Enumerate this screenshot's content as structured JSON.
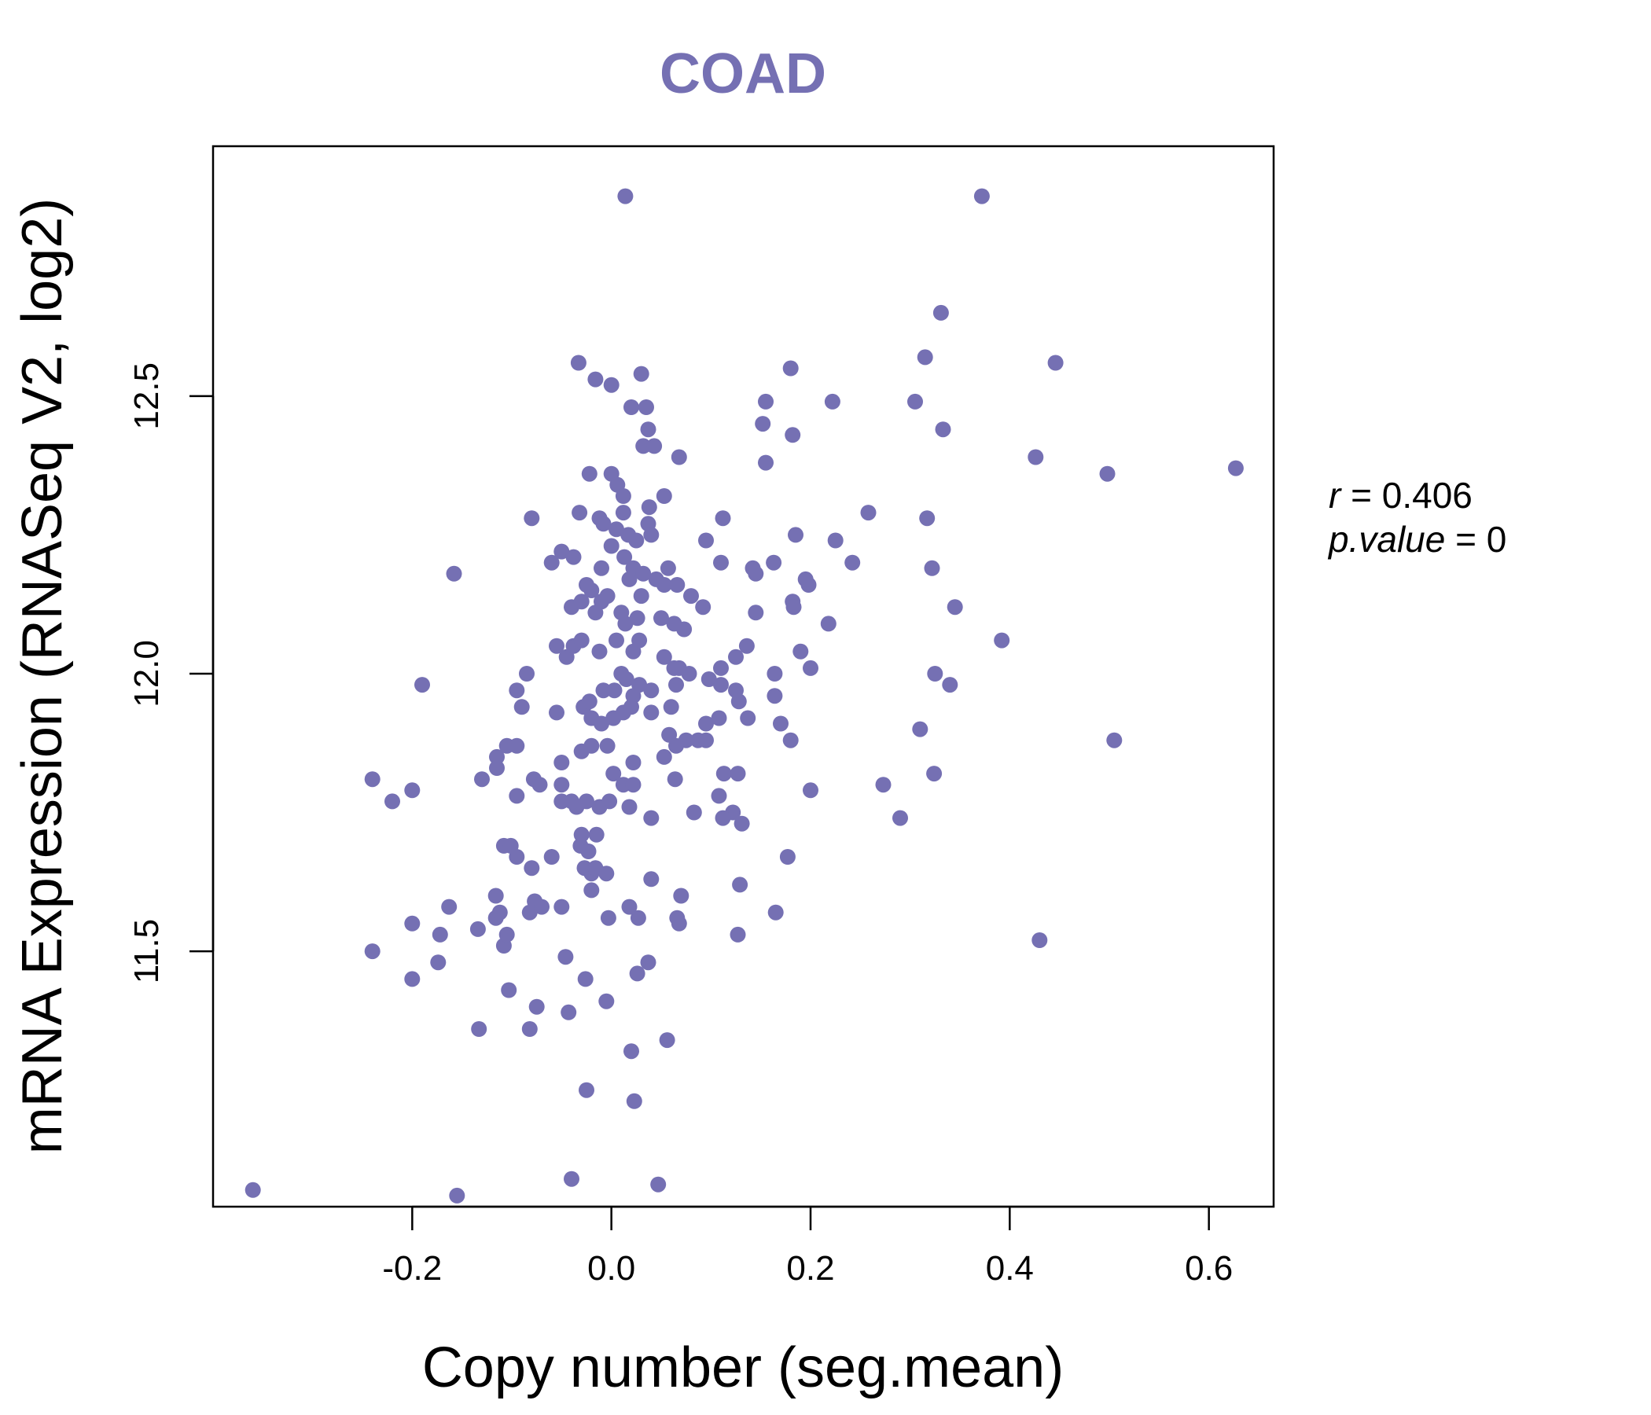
{
  "chart_data": {
    "type": "scatter",
    "title": "COAD",
    "xlabel": "Copy number (seg.mean)",
    "ylabel": "mRNA Expression (RNASeq V2, log2)",
    "xlim": [
      -0.4,
      0.665
    ],
    "ylim": [
      11.04,
      12.95
    ],
    "xticks": [
      -0.2,
      0.0,
      0.2,
      0.4,
      0.6
    ],
    "xtick_labels": [
      "-0.2",
      "0.0",
      "0.2",
      "0.4",
      "0.6"
    ],
    "yticks": [
      11.5,
      12.0,
      12.5
    ],
    "ytick_labels": [
      "11.5",
      "12.0",
      "12.5"
    ],
    "annotation": {
      "r_symbol": "r",
      "r_value": "0.406",
      "p_symbol": "p.value",
      "p_value": "0"
    },
    "colors": {
      "points": "#7570b3",
      "title": "#7570b3",
      "axis": "#000000"
    },
    "points": [
      [
        -0.36,
        11.07
      ],
      [
        -0.155,
        11.06
      ],
      [
        -0.04,
        11.09
      ],
      [
        0.047,
        11.08
      ],
      [
        -0.025,
        11.25
      ],
      [
        0.023,
        11.23
      ],
      [
        0.02,
        11.32
      ],
      [
        0.056,
        11.34
      ],
      [
        -0.133,
        11.36
      ],
      [
        -0.082,
        11.36
      ],
      [
        -0.075,
        11.4
      ],
      [
        -0.043,
        11.39
      ],
      [
        -0.005,
        11.41
      ],
      [
        -0.103,
        11.43
      ],
      [
        -0.2,
        11.45
      ],
      [
        -0.026,
        11.45
      ],
      [
        -0.046,
        11.49
      ],
      [
        0.026,
        11.46
      ],
      [
        0.037,
        11.48
      ],
      [
        -0.24,
        11.5
      ],
      [
        -0.174,
        11.48
      ],
      [
        -0.172,
        11.53
      ],
      [
        -0.108,
        11.51
      ],
      [
        -0.105,
        11.53
      ],
      [
        -0.2,
        11.55
      ],
      [
        -0.134,
        11.54
      ],
      [
        -0.116,
        11.56
      ],
      [
        -0.163,
        11.58
      ],
      [
        -0.112,
        11.57
      ],
      [
        -0.082,
        11.57
      ],
      [
        -0.077,
        11.59
      ],
      [
        -0.07,
        11.58
      ],
      [
        -0.05,
        11.58
      ],
      [
        -0.003,
        11.56
      ],
      [
        0.018,
        11.58
      ],
      [
        0.027,
        11.56
      ],
      [
        0.066,
        11.56
      ],
      [
        0.068,
        11.55
      ],
      [
        -0.116,
        11.6
      ],
      [
        -0.02,
        11.61
      ],
      [
        -0.02,
        11.64
      ],
      [
        -0.027,
        11.65
      ],
      [
        -0.016,
        11.65
      ],
      [
        -0.005,
        11.64
      ],
      [
        0.04,
        11.63
      ],
      [
        0.07,
        11.6
      ],
      [
        0.129,
        11.62
      ],
      [
        -0.108,
        11.69
      ],
      [
        -0.101,
        11.69
      ],
      [
        -0.095,
        11.67
      ],
      [
        -0.08,
        11.65
      ],
      [
        -0.06,
        11.67
      ],
      [
        -0.031,
        11.69
      ],
      [
        -0.03,
        11.71
      ],
      [
        -0.023,
        11.68
      ],
      [
        -0.015,
        11.71
      ],
      [
        0.177,
        11.67
      ],
      [
        -0.24,
        11.81
      ],
      [
        -0.2,
        11.79
      ],
      [
        -0.22,
        11.77
      ],
      [
        -0.13,
        11.81
      ],
      [
        -0.095,
        11.78
      ],
      [
        -0.078,
        11.81
      ],
      [
        -0.072,
        11.8
      ],
      [
        -0.05,
        11.8
      ],
      [
        -0.05,
        11.84
      ],
      [
        -0.05,
        11.77
      ],
      [
        -0.04,
        11.77
      ],
      [
        -0.035,
        11.76
      ],
      [
        -0.025,
        11.77
      ],
      [
        -0.012,
        11.76
      ],
      [
        -0.002,
        11.77
      ],
      [
        0.002,
        11.82
      ],
      [
        0.012,
        11.8
      ],
      [
        0.022,
        11.8
      ],
      [
        0.022,
        11.84
      ],
      [
        0.018,
        11.76
      ],
      [
        0.04,
        11.74
      ],
      [
        0.053,
        11.85
      ],
      [
        0.064,
        11.81
      ],
      [
        0.083,
        11.75
      ],
      [
        0.108,
        11.78
      ],
      [
        0.113,
        11.82
      ],
      [
        0.122,
        11.75
      ],
      [
        0.112,
        11.74
      ],
      [
        0.131,
        11.73
      ],
      [
        0.127,
        11.82
      ],
      [
        0.127,
        11.53
      ],
      [
        0.165,
        11.57
      ],
      [
        0.2,
        11.79
      ],
      [
        0.273,
        11.8
      ],
      [
        0.29,
        11.74
      ],
      [
        0.324,
        11.82
      ],
      [
        0.43,
        11.52
      ],
      [
        -0.115,
        11.85
      ],
      [
        -0.115,
        11.83
      ],
      [
        -0.105,
        11.87
      ],
      [
        -0.095,
        11.87
      ],
      [
        -0.055,
        11.93
      ],
      [
        -0.03,
        11.86
      ],
      [
        -0.02,
        11.87
      ],
      [
        -0.004,
        11.87
      ],
      [
        -0.02,
        11.92
      ],
      [
        -0.01,
        11.91
      ],
      [
        0.002,
        11.92
      ],
      [
        0.012,
        11.93
      ],
      [
        0.02,
        11.94
      ],
      [
        0.04,
        11.93
      ],
      [
        0.06,
        11.94
      ],
      [
        0.058,
        11.89
      ],
      [
        0.075,
        11.88
      ],
      [
        0.065,
        11.87
      ],
      [
        0.087,
        11.88
      ],
      [
        0.095,
        11.88
      ],
      [
        0.095,
        11.91
      ],
      [
        0.108,
        11.92
      ],
      [
        0.137,
        11.92
      ],
      [
        0.17,
        11.91
      ],
      [
        0.18,
        11.88
      ],
      [
        0.31,
        11.9
      ],
      [
        0.505,
        11.88
      ],
      [
        -0.19,
        11.98
      ],
      [
        -0.095,
        11.97
      ],
      [
        -0.09,
        11.94
      ],
      [
        -0.085,
        12.0
      ],
      [
        -0.028,
        11.94
      ],
      [
        -0.022,
        11.95
      ],
      [
        -0.008,
        11.97
      ],
      [
        0.003,
        11.97
      ],
      [
        0.01,
        12.0
      ],
      [
        0.015,
        11.99
      ],
      [
        0.022,
        11.96
      ],
      [
        0.028,
        11.98
      ],
      [
        0.04,
        11.97
      ],
      [
        0.065,
        11.98
      ],
      [
        0.078,
        12.0
      ],
      [
        0.098,
        11.99
      ],
      [
        0.11,
        11.98
      ],
      [
        0.125,
        11.97
      ],
      [
        0.128,
        11.95
      ],
      [
        0.164,
        11.96
      ],
      [
        0.164,
        12.0
      ],
      [
        0.2,
        12.01
      ],
      [
        0.325,
        12.0
      ],
      [
        0.34,
        11.98
      ],
      [
        -0.055,
        12.05
      ],
      [
        -0.045,
        12.03
      ],
      [
        -0.038,
        12.05
      ],
      [
        -0.03,
        12.06
      ],
      [
        -0.012,
        12.04
      ],
      [
        0.005,
        12.06
      ],
      [
        0.022,
        12.04
      ],
      [
        0.028,
        12.06
      ],
      [
        0.053,
        12.03
      ],
      [
        0.063,
        12.01
      ],
      [
        0.068,
        12.01
      ],
      [
        0.11,
        12.01
      ],
      [
        0.125,
        12.03
      ],
      [
        0.136,
        12.05
      ],
      [
        0.19,
        12.04
      ],
      [
        0.392,
        12.06
      ],
      [
        -0.04,
        12.12
      ],
      [
        -0.03,
        12.13
      ],
      [
        -0.02,
        12.15
      ],
      [
        -0.016,
        12.11
      ],
      [
        -0.01,
        12.13
      ],
      [
        -0.004,
        12.14
      ],
      [
        0.01,
        12.11
      ],
      [
        0.014,
        12.09
      ],
      [
        0.026,
        12.1
      ],
      [
        0.03,
        12.14
      ],
      [
        0.05,
        12.1
      ],
      [
        0.053,
        12.16
      ],
      [
        0.063,
        12.09
      ],
      [
        0.073,
        12.08
      ],
      [
        0.08,
        12.14
      ],
      [
        0.092,
        12.12
      ],
      [
        0.145,
        12.11
      ],
      [
        0.182,
        12.13
      ],
      [
        0.183,
        12.12
      ],
      [
        0.198,
        12.16
      ],
      [
        0.218,
        12.09
      ],
      [
        0.345,
        12.12
      ],
      [
        -0.158,
        12.18
      ],
      [
        -0.06,
        12.2
      ],
      [
        -0.05,
        12.22
      ],
      [
        -0.038,
        12.21
      ],
      [
        -0.025,
        12.16
      ],
      [
        -0.01,
        12.19
      ],
      [
        0.0,
        12.23
      ],
      [
        0.013,
        12.21
      ],
      [
        0.018,
        12.17
      ],
      [
        0.022,
        12.19
      ],
      [
        0.032,
        12.18
      ],
      [
        0.045,
        12.17
      ],
      [
        0.057,
        12.19
      ],
      [
        0.066,
        12.16
      ],
      [
        0.11,
        12.2
      ],
      [
        0.142,
        12.19
      ],
      [
        0.145,
        12.18
      ],
      [
        0.163,
        12.2
      ],
      [
        0.195,
        12.17
      ],
      [
        0.242,
        12.2
      ],
      [
        0.322,
        12.19
      ],
      [
        -0.08,
        12.28
      ],
      [
        -0.032,
        12.29
      ],
      [
        -0.012,
        12.28
      ],
      [
        -0.008,
        12.27
      ],
      [
        0.005,
        12.26
      ],
      [
        0.012,
        12.29
      ],
      [
        0.017,
        12.25
      ],
      [
        0.025,
        12.24
      ],
      [
        0.037,
        12.27
      ],
      [
        0.038,
        12.3
      ],
      [
        0.04,
        12.25
      ],
      [
        0.095,
        12.24
      ],
      [
        0.112,
        12.28
      ],
      [
        0.185,
        12.25
      ],
      [
        0.225,
        12.24
      ],
      [
        0.258,
        12.29
      ],
      [
        0.317,
        12.28
      ],
      [
        -0.022,
        12.36
      ],
      [
        0.0,
        12.36
      ],
      [
        0.006,
        12.34
      ],
      [
        0.012,
        12.32
      ],
      [
        0.053,
        12.32
      ],
      [
        0.155,
        12.38
      ],
      [
        0.426,
        12.39
      ],
      [
        0.498,
        12.36
      ],
      [
        0.627,
        12.37
      ],
      [
        0.032,
        12.41
      ],
      [
        0.037,
        12.44
      ],
      [
        0.043,
        12.41
      ],
      [
        0.068,
        12.39
      ],
      [
        0.152,
        12.45
      ],
      [
        0.182,
        12.43
      ],
      [
        0.333,
        12.44
      ],
      [
        0.02,
        12.48
      ],
      [
        0.035,
        12.48
      ],
      [
        0.155,
        12.49
      ],
      [
        0.222,
        12.49
      ],
      [
        0.305,
        12.49
      ],
      [
        -0.016,
        12.53
      ],
      [
        0.0,
        12.52
      ],
      [
        0.03,
        12.54
      ],
      [
        -0.033,
        12.56
      ],
      [
        0.18,
        12.55
      ],
      [
        0.315,
        12.57
      ],
      [
        0.446,
        12.56
      ],
      [
        0.331,
        12.65
      ],
      [
        0.014,
        12.86
      ],
      [
        0.372,
        12.86
      ]
    ]
  }
}
